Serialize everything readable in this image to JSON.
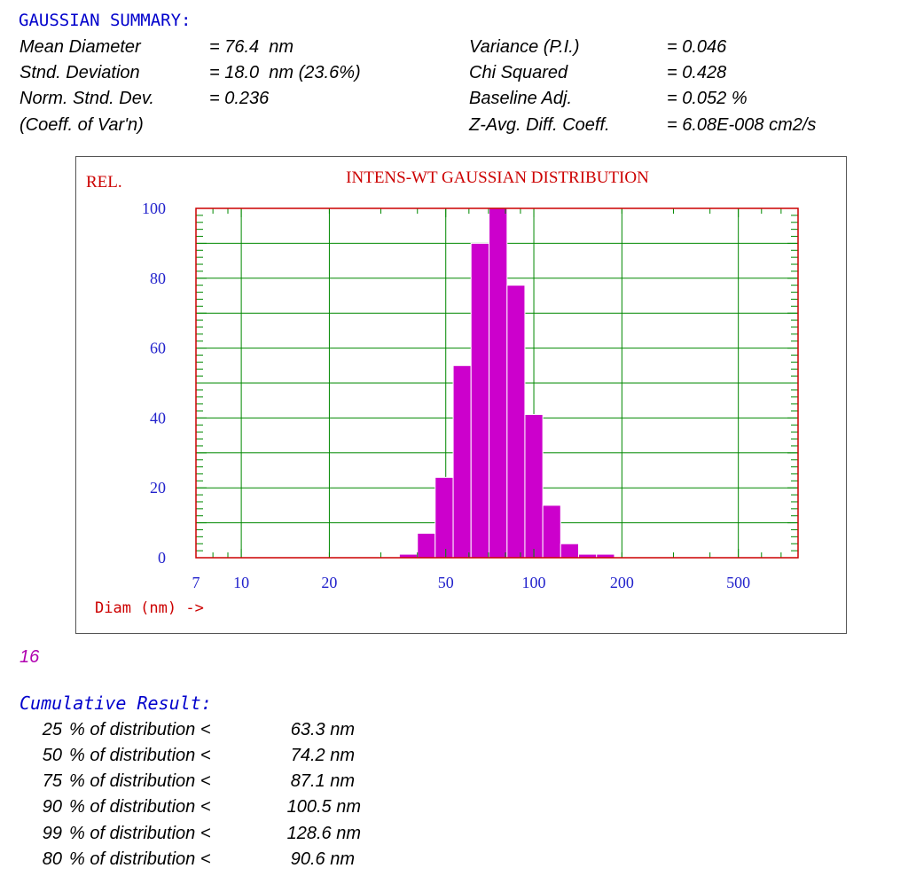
{
  "summary": {
    "title": "GAUSSIAN SUMMARY:",
    "left": [
      {
        "label": "Mean Diameter",
        "value": "= 76.4  nm"
      },
      {
        "label": "Stnd. Deviation",
        "value": "= 18.0  nm (23.6%)"
      },
      {
        "label": "Norm. Stnd. Dev.",
        "value": "= 0.236"
      },
      {
        "label": "(Coeff. of Var'n)",
        "value": ""
      }
    ],
    "right": [
      {
        "label": "Variance (P.I.)",
        "value": "= 0.046"
      },
      {
        "label": "Chi Squared",
        "value": "= 0.428"
      },
      {
        "label": "Baseline Adj.",
        "value": "= 0.052 %"
      },
      {
        "label": "Z-Avg. Diff. Coeff.",
        "value": "= 6.08E-008 cm2/s"
      }
    ]
  },
  "chart_data": {
    "type": "bar",
    "title": "INTENS-WT GAUSSIAN DISTRIBUTION",
    "ylabel": "REL.",
    "xlabel": "Diam (nm) ->",
    "x_scale": "log",
    "xlim": [
      7,
      800
    ],
    "ylim": [
      0,
      100
    ],
    "x_tick_labels": [
      "7",
      "10",
      "20",
      "50",
      "100",
      "200",
      "500"
    ],
    "y_tick_labels": [
      "0",
      "20",
      "40",
      "60",
      "80",
      "100"
    ],
    "bins": [
      {
        "from": 34.7,
        "to": 40.0,
        "value": 1
      },
      {
        "from": 40.0,
        "to": 46.0,
        "value": 7
      },
      {
        "from": 46.0,
        "to": 53.0,
        "value": 23
      },
      {
        "from": 53.0,
        "to": 61.0,
        "value": 55
      },
      {
        "from": 61.0,
        "to": 70.3,
        "value": 90
      },
      {
        "from": 70.3,
        "to": 81.0,
        "value": 100
      },
      {
        "from": 81.0,
        "to": 93.2,
        "value": 78
      },
      {
        "from": 93.2,
        "to": 107.3,
        "value": 41
      },
      {
        "from": 107.3,
        "to": 123.5,
        "value": 15
      },
      {
        "from": 123.5,
        "to": 142.2,
        "value": 4
      },
      {
        "from": 142.2,
        "to": 163.8,
        "value": 1
      },
      {
        "from": 163.8,
        "to": 188.6,
        "value": 1
      }
    ],
    "colors": {
      "bar": "#cc00cc",
      "grid": "#008800",
      "axis_frame": "#cc0000",
      "tick_label": "#2222cc",
      "title": "#cc0000"
    }
  },
  "run_number": "16",
  "cumulative": {
    "title": "Cumulative Result:",
    "rows": [
      {
        "pct": "25",
        "text": "% of distribution <",
        "value": "63.3 nm"
      },
      {
        "pct": "50",
        "text": "% of distribution <",
        "value": "74.2 nm"
      },
      {
        "pct": "75",
        "text": "% of distribution <",
        "value": "87.1 nm"
      },
      {
        "pct": "90",
        "text": "% of distribution <",
        "value": "100.5 nm"
      },
      {
        "pct": "99",
        "text": "% of distribution <",
        "value": "128.6 nm"
      },
      {
        "pct": "80",
        "text": "% of distribution <",
        "value": "90.6 nm"
      }
    ]
  }
}
